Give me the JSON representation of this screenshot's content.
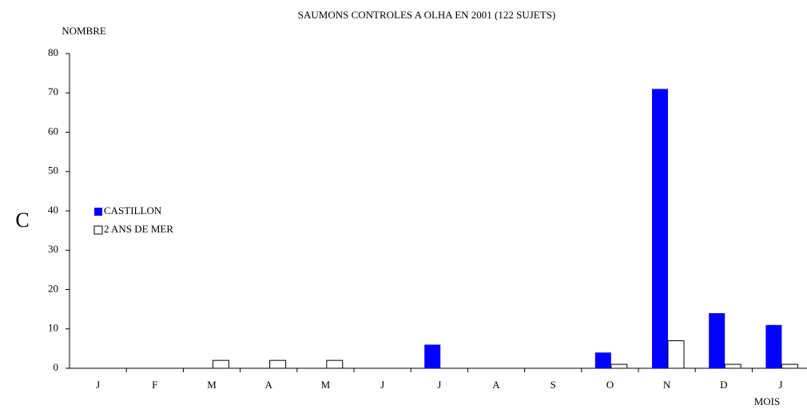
{
  "chart_data": {
    "type": "bar",
    "title": "SAUMONS CONTROLES A OLHA EN 2001 (122 SUJETS)",
    "y_label": "NOMBRE",
    "x_label": "MOIS",
    "side_label": "C",
    "categories": [
      "J",
      "F",
      "M",
      "A",
      "M",
      "J",
      "J",
      "A",
      "S",
      "O",
      "N",
      "D",
      "J"
    ],
    "series": [
      {
        "name": "CASTILLON",
        "color": "#0000ff",
        "values": [
          0,
          0,
          0,
          0,
          0,
          0,
          6,
          0,
          0,
          4,
          71,
          14,
          11
        ]
      },
      {
        "name": "2 ANS DE MER",
        "color": "#ffffff",
        "values": [
          0,
          0,
          2,
          2,
          2,
          0,
          0,
          0,
          0,
          1,
          7,
          1,
          1
        ]
      }
    ],
    "ylim": [
      0,
      80
    ],
    "yticks": [
      0,
      10,
      20,
      30,
      40,
      50,
      60,
      70,
      80
    ],
    "grid": false,
    "legend": "left"
  }
}
